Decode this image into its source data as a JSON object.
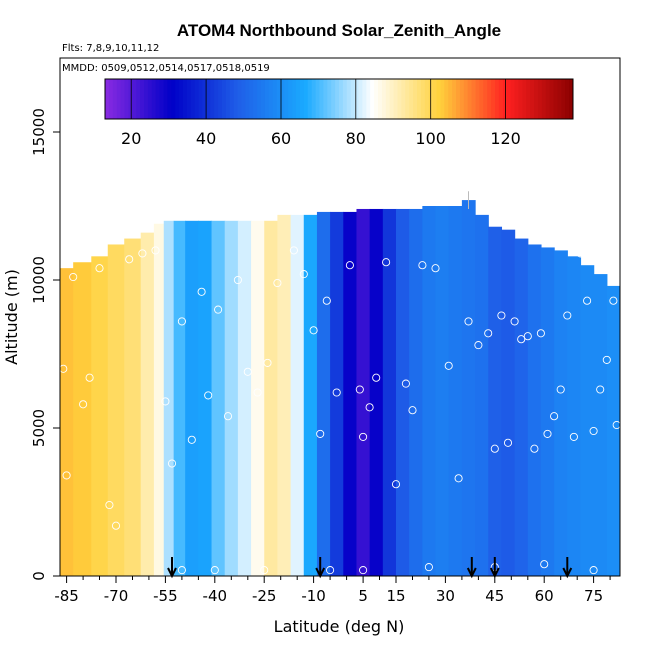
{
  "chart_data": {
    "type": "heatmap",
    "title": "ATOM4 Northbound Solar_Zenith_Angle",
    "subtitle_flights": "Flts: 7,8,9,10,11,12",
    "subtitle_dates": "MMDD: 0509,0512,0514,0517,0518,0519",
    "xlabel": "Latitude (deg N)",
    "ylabel": "Altitude (m)",
    "xlim": [
      -87,
      83
    ],
    "ylim": [
      0,
      17500
    ],
    "x_ticks": [
      -85,
      -70,
      -55,
      -40,
      -25,
      -10,
      5,
      15,
      30,
      45,
      60,
      75
    ],
    "x_tick_labels": [
      "-85",
      "-70",
      "-55",
      "-40",
      "-25",
      "-10",
      "5",
      "15",
      "30",
      "45",
      "60",
      "75"
    ],
    "y_ticks": [
      0,
      5000,
      10000,
      15000
    ],
    "y_tick_labels": [
      "0",
      "5000",
      "10000",
      "15000"
    ],
    "colorbar": {
      "range": [
        13,
        138
      ],
      "ticks": [
        20,
        40,
        60,
        80,
        100,
        120
      ],
      "tick_labels": [
        "20",
        "40",
        "60",
        "80",
        "100",
        "120"
      ],
      "palette": [
        "#8a2be2",
        "#0000c8",
        "#1f5fe8",
        "#1aaaff",
        "#ffffff",
        "#ffd23c",
        "#ff2020",
        "#8b0000"
      ]
    },
    "profile_columns": [
      {
        "lat": -86,
        "value": 104,
        "top": 10400
      },
      {
        "lat": -80,
        "value": 103,
        "top": 10600
      },
      {
        "lat": -75,
        "value": 101,
        "top": 10800
      },
      {
        "lat": -70,
        "value": 99,
        "top": 11200
      },
      {
        "lat": -65,
        "value": 97,
        "top": 11400
      },
      {
        "lat": -60,
        "value": 92,
        "top": 11600
      },
      {
        "lat": -57,
        "value": 87,
        "top": 11900
      },
      {
        "lat": -54,
        "value": 78,
        "top": 12000
      },
      {
        "lat": -51,
        "value": 70,
        "top": 12000
      },
      {
        "lat": -47,
        "value": 64,
        "top": 12000
      },
      {
        "lat": -43,
        "value": 65,
        "top": 12000
      },
      {
        "lat": -39,
        "value": 72,
        "top": 12000
      },
      {
        "lat": -35,
        "value": 77,
        "top": 12000
      },
      {
        "lat": -31,
        "value": 81,
        "top": 12000
      },
      {
        "lat": -27,
        "value": 86,
        "top": 12000
      },
      {
        "lat": -23,
        "value": 93,
        "top": 12000
      },
      {
        "lat": -19,
        "value": 91,
        "top": 12200
      },
      {
        "lat": -15,
        "value": 82,
        "top": 12200
      },
      {
        "lat": -11,
        "value": 66,
        "top": 12200
      },
      {
        "lat": -7,
        "value": 52,
        "top": 12300
      },
      {
        "lat": -3,
        "value": 42,
        "top": 12300
      },
      {
        "lat": 1,
        "value": 30,
        "top": 12300
      },
      {
        "lat": 5,
        "value": 24,
        "top": 12400
      },
      {
        "lat": 9,
        "value": 30,
        "top": 12400
      },
      {
        "lat": 13,
        "value": 41,
        "top": 12400
      },
      {
        "lat": 17,
        "value": 48,
        "top": 12400
      },
      {
        "lat": 21,
        "value": 52,
        "top": 12400
      },
      {
        "lat": 25,
        "value": 55,
        "top": 12500
      },
      {
        "lat": 29,
        "value": 56,
        "top": 12500
      },
      {
        "lat": 33,
        "value": 55,
        "top": 12500
      },
      {
        "lat": 37,
        "value": 54,
        "top": 12700
      },
      {
        "lat": 41,
        "value": 53,
        "top": 12200
      },
      {
        "lat": 45,
        "value": 49,
        "top": 11800
      },
      {
        "lat": 49,
        "value": 48,
        "top": 11700
      },
      {
        "lat": 53,
        "value": 50,
        "top": 11400
      },
      {
        "lat": 57,
        "value": 53,
        "top": 11200
      },
      {
        "lat": 61,
        "value": 55,
        "top": 11100
      },
      {
        "lat": 65,
        "value": 57,
        "top": 11000
      },
      {
        "lat": 69,
        "value": 58,
        "top": 10800
      },
      {
        "lat": 73,
        "value": 59,
        "top": 10500
      },
      {
        "lat": 77,
        "value": 59,
        "top": 10200
      },
      {
        "lat": 81,
        "value": 60,
        "top": 9800
      }
    ],
    "samples": [
      {
        "lat": -86,
        "alt": 7000
      },
      {
        "lat": -85,
        "alt": 3400
      },
      {
        "lat": -83,
        "alt": 10100
      },
      {
        "lat": -80,
        "alt": 5800
      },
      {
        "lat": -78,
        "alt": 6700
      },
      {
        "lat": -75,
        "alt": 10400
      },
      {
        "lat": -72,
        "alt": 2400
      },
      {
        "lat": -70,
        "alt": 1700
      },
      {
        "lat": -66,
        "alt": 10700
      },
      {
        "lat": -62,
        "alt": 10900
      },
      {
        "lat": -58,
        "alt": 11000
      },
      {
        "lat": -55,
        "alt": 5900
      },
      {
        "lat": -53,
        "alt": 3800
      },
      {
        "lat": -50,
        "alt": 8600
      },
      {
        "lat": -47,
        "alt": 4600
      },
      {
        "lat": -44,
        "alt": 9600
      },
      {
        "lat": -42,
        "alt": 6100
      },
      {
        "lat": -39,
        "alt": 9000
      },
      {
        "lat": -36,
        "alt": 5400
      },
      {
        "lat": -33,
        "alt": 10000
      },
      {
        "lat": -30,
        "alt": 6900
      },
      {
        "lat": -27,
        "alt": 6200
      },
      {
        "lat": -24,
        "alt": 7200
      },
      {
        "lat": -21,
        "alt": 9900
      },
      {
        "lat": -16,
        "alt": 11000
      },
      {
        "lat": -13,
        "alt": 10200
      },
      {
        "lat": -10,
        "alt": 8300
      },
      {
        "lat": -8,
        "alt": 4800
      },
      {
        "lat": -6,
        "alt": 9300
      },
      {
        "lat": -3,
        "alt": 6200
      },
      {
        "lat": 1,
        "alt": 10500
      },
      {
        "lat": 4,
        "alt": 6300
      },
      {
        "lat": 5,
        "alt": 4700
      },
      {
        "lat": 7,
        "alt": 5700
      },
      {
        "lat": 9,
        "alt": 6700
      },
      {
        "lat": 12,
        "alt": 10600
      },
      {
        "lat": 15,
        "alt": 3100
      },
      {
        "lat": 18,
        "alt": 6500
      },
      {
        "lat": 20,
        "alt": 5600
      },
      {
        "lat": 23,
        "alt": 10500
      },
      {
        "lat": 27,
        "alt": 10400
      },
      {
        "lat": 31,
        "alt": 7100
      },
      {
        "lat": 34,
        "alt": 3300
      },
      {
        "lat": 37,
        "alt": 8600
      },
      {
        "lat": 40,
        "alt": 7800
      },
      {
        "lat": 43,
        "alt": 8200
      },
      {
        "lat": 45,
        "alt": 4300
      },
      {
        "lat": 47,
        "alt": 8800
      },
      {
        "lat": 49,
        "alt": 4500
      },
      {
        "lat": 51,
        "alt": 8600
      },
      {
        "lat": 53,
        "alt": 8000
      },
      {
        "lat": 55,
        "alt": 8100
      },
      {
        "lat": 57,
        "alt": 4300
      },
      {
        "lat": 59,
        "alt": 8200
      },
      {
        "lat": 61,
        "alt": 4800
      },
      {
        "lat": 63,
        "alt": 5400
      },
      {
        "lat": 65,
        "alt": 6300
      },
      {
        "lat": 67,
        "alt": 8800
      },
      {
        "lat": 69,
        "alt": 4700
      },
      {
        "lat": 71,
        "alt": 10900
      },
      {
        "lat": 73,
        "alt": 9300
      },
      {
        "lat": 75,
        "alt": 4900
      },
      {
        "lat": 77,
        "alt": 6300
      },
      {
        "lat": 79,
        "alt": 7300
      },
      {
        "lat": 81,
        "alt": 9300
      },
      {
        "lat": 82,
        "alt": 5100
      },
      {
        "lat": -50,
        "alt": 200
      },
      {
        "lat": -40,
        "alt": 200
      },
      {
        "lat": -25,
        "alt": 200
      },
      {
        "lat": -5,
        "alt": 200
      },
      {
        "lat": 5,
        "alt": 200
      },
      {
        "lat": 25,
        "alt": 300
      },
      {
        "lat": 45,
        "alt": 300
      },
      {
        "lat": 60,
        "alt": 400
      },
      {
        "lat": 75,
        "alt": 200
      }
    ],
    "flight_markers_lat": [
      -53,
      -8,
      38,
      45,
      67
    ],
    "max_altitude_marker_lat": 37
  }
}
